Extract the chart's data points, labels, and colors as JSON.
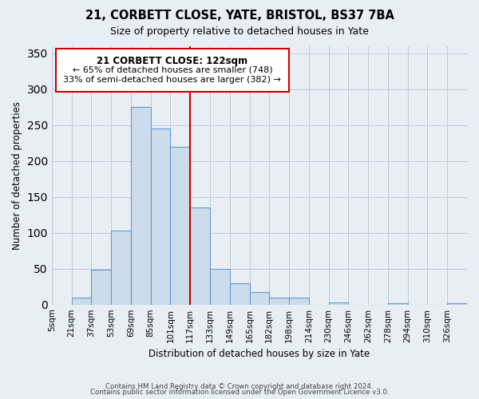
{
  "title": "21, CORBETT CLOSE, YATE, BRISTOL, BS37 7BA",
  "subtitle": "Size of property relative to detached houses in Yate",
  "xlabel": "Distribution of detached houses by size in Yate",
  "ylabel": "Number of detached properties",
  "footer_line1": "Contains HM Land Registry data © Crown copyright and database right 2024.",
  "footer_line2": "Contains public sector information licensed under the Open Government Licence v3.0.",
  "bin_labels": [
    "5sqm",
    "21sqm",
    "37sqm",
    "53sqm",
    "69sqm",
    "85sqm",
    "101sqm",
    "117sqm",
    "133sqm",
    "149sqm",
    "165sqm",
    "182sqm",
    "198sqm",
    "214sqm",
    "230sqm",
    "246sqm",
    "262sqm",
    "278sqm",
    "294sqm",
    "310sqm",
    "326sqm"
  ],
  "bar_values": [
    0,
    10,
    48,
    103,
    275,
    245,
    220,
    135,
    50,
    30,
    17,
    10,
    10,
    0,
    3,
    0,
    0,
    2,
    0,
    0,
    2
  ],
  "bar_color": "#ccdcec",
  "bar_edge_color": "#6699cc",
  "vline_x": 7.0,
  "vline_color": "#cc0000",
  "annotation_title": "21 CORBETT CLOSE: 122sqm",
  "annotation_line1": "← 65% of detached houses are smaller (748)",
  "annotation_line2": "33% of semi-detached houses are larger (382) →",
  "annotation_box_color": "#ffffff",
  "annotation_box_edge_color": "#cc0000",
  "ylim": [
    0,
    360
  ],
  "background_color": "#e8eef4",
  "plot_bg_color": "#e8eef4",
  "figsize": [
    6.0,
    5.0
  ],
  "dpi": 100
}
